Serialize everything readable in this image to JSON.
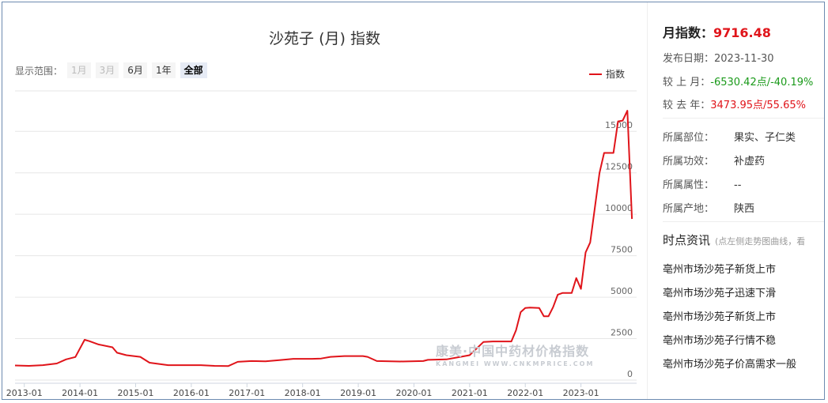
{
  "chart_title": "沙苑子 (月) 指数",
  "range": {
    "label": "显示范围：",
    "buttons": [
      "1月",
      "3月",
      "6月",
      "1年",
      "全部"
    ],
    "selected": "全部",
    "disabled": [
      "1月",
      "3月"
    ]
  },
  "watermark": {
    "main": "康美·中国中药材价格指数",
    "sub": "KANGMEI  WWW.CNKMPRICE.COM"
  },
  "info": {
    "index_label": "月指数：",
    "index_value": "9716.48",
    "date_label": "发布日期：",
    "date_value": "2023-11-30",
    "mom_label": "较 上 月：",
    "mom_value": "-6530.42点/-40.19%",
    "yoy_label": "较 去 年：",
    "yoy_value": "3473.95点/55.65%",
    "props": [
      {
        "k": "所属部位：",
        "v": "果实、子仁类"
      },
      {
        "k": "所属功效：",
        "v": "补虚药"
      },
      {
        "k": "所属属性：",
        "v": "--"
      },
      {
        "k": "所属产地：",
        "v": "陕西"
      }
    ],
    "news_title": "时点资讯",
    "news_hint": "(点左侧走势图曲线，看",
    "news": [
      "亳州市场沙苑子新货上市",
      "亳州市场沙苑子迅速下滑",
      "亳州市场沙苑子新货上市",
      "亳州市场沙苑子行情不稳",
      "亳州市场沙苑子价高需求一般"
    ]
  },
  "colors": {
    "line": "#e0141a",
    "grid": "#e6e6e6",
    "up": "#e0141a",
    "down": "#1a9a1a"
  },
  "chart_data": {
    "type": "line",
    "title": "沙苑子 (月) 指数",
    "series": [
      {
        "name": "指数",
        "points": [
          [
            "2012-11",
            880
          ],
          [
            "2013-02",
            860
          ],
          [
            "2013-05",
            900
          ],
          [
            "2013-08",
            1000
          ],
          [
            "2013-10",
            1250
          ],
          [
            "2013-12",
            1390
          ],
          [
            "2014-02",
            2430
          ],
          [
            "2014-03",
            2350
          ],
          [
            "2014-05",
            2150
          ],
          [
            "2014-08",
            1980
          ],
          [
            "2014-09",
            1650
          ],
          [
            "2014-11",
            1500
          ],
          [
            "2015-02",
            1400
          ],
          [
            "2015-04",
            1050
          ],
          [
            "2015-08",
            900
          ],
          [
            "2015-11",
            900
          ],
          [
            "2016-03",
            900
          ],
          [
            "2016-06",
            860
          ],
          [
            "2016-09",
            850
          ],
          [
            "2016-11",
            1100
          ],
          [
            "2017-02",
            1150
          ],
          [
            "2017-05",
            1130
          ],
          [
            "2017-08",
            1200
          ],
          [
            "2017-11",
            1280
          ],
          [
            "2018-03",
            1280
          ],
          [
            "2018-05",
            1300
          ],
          [
            "2018-07",
            1400
          ],
          [
            "2018-10",
            1450
          ],
          [
            "2019-02",
            1450
          ],
          [
            "2019-03",
            1400
          ],
          [
            "2019-05",
            1150
          ],
          [
            "2019-10",
            1120
          ],
          [
            "2020-03",
            1150
          ],
          [
            "2020-04",
            1220
          ],
          [
            "2020-08",
            1250
          ],
          [
            "2020-11",
            1400
          ],
          [
            "2021-01",
            1500
          ],
          [
            "2021-04",
            2300
          ],
          [
            "2021-06",
            2330
          ],
          [
            "2021-10",
            2330
          ],
          [
            "2021-11",
            3000
          ],
          [
            "2021-12",
            4100
          ],
          [
            "2022-01",
            4350
          ],
          [
            "2022-02",
            4370
          ],
          [
            "2022-04",
            4350
          ],
          [
            "2022-05",
            3850
          ],
          [
            "2022-06",
            3850
          ],
          [
            "2022-07",
            4400
          ],
          [
            "2022-08",
            5150
          ],
          [
            "2022-09",
            5250
          ],
          [
            "2022-11",
            5250
          ],
          [
            "2022-12",
            6150
          ],
          [
            "2023-01",
            5500
          ],
          [
            "2023-02",
            7700
          ],
          [
            "2023-03",
            8300
          ],
          [
            "2023-05",
            12500
          ],
          [
            "2023-06",
            13700
          ],
          [
            "2023-08",
            13700
          ],
          [
            "2023-09",
            15600
          ],
          [
            "2023-10",
            15650
          ],
          [
            "2023-11",
            16247
          ],
          [
            "2023-12",
            9716
          ]
        ]
      }
    ],
    "x_ticks": [
      "2013-01",
      "2014-01",
      "2015-01",
      "2016-01",
      "2017-01",
      "2018-01",
      "2019-01",
      "2020-01",
      "2021-01",
      "2022-01",
      "2023-01"
    ],
    "xlim": [
      "2012-11",
      "2024-01"
    ],
    "y_ticks": [
      0,
      2500,
      5000,
      7500,
      10000,
      12500,
      15000
    ],
    "ylim": [
      0,
      16250
    ],
    "legend_position": "top-right",
    "grid": true
  }
}
